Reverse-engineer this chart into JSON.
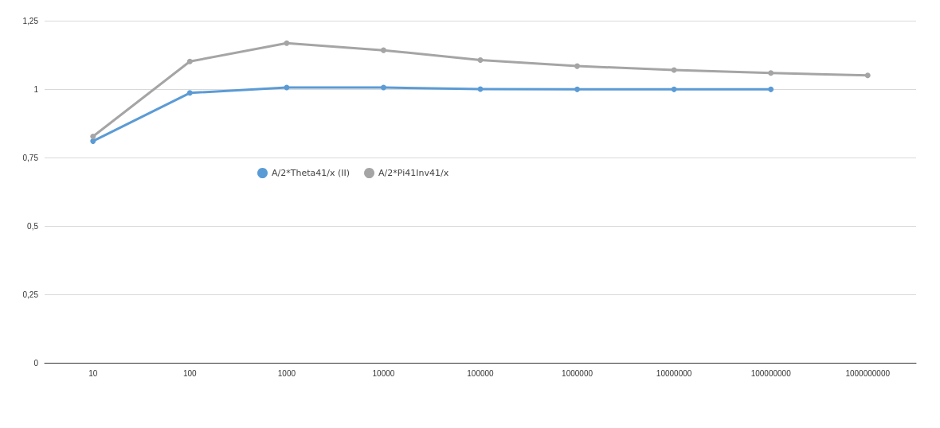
{
  "chart_data": {
    "type": "line",
    "categories": [
      "10",
      "100",
      "1000",
      "10000",
      "100000",
      "1000000",
      "10000000",
      "100000000",
      "1000000000"
    ],
    "series": [
      {
        "name": "A/2*Theta41/x (II)",
        "color": "#5b9bd5",
        "values": [
          0.81,
          0.986,
          1.006,
          1.006,
          1.0,
          0.999,
          0.999,
          0.999,
          null
        ]
      },
      {
        "name": "A/2*Pi41Inv41/x",
        "color": "#a5a5a5",
        "values": [
          0.827,
          1.101,
          1.168,
          1.142,
          1.106,
          1.084,
          1.07,
          1.059,
          1.05
        ]
      }
    ],
    "ylim": [
      0,
      1.25
    ],
    "yticks": [
      {
        "value": 0,
        "label": "0"
      },
      {
        "value": 0.25,
        "label": "0,25"
      },
      {
        "value": 0.5,
        "label": "0,5"
      },
      {
        "value": 0.75,
        "label": "0,75"
      },
      {
        "value": 1,
        "label": "1"
      },
      {
        "value": 1.25,
        "label": "1,25"
      }
    ],
    "grid": "y",
    "legend": "center left",
    "marker": "circle",
    "line_style": "solid"
  }
}
